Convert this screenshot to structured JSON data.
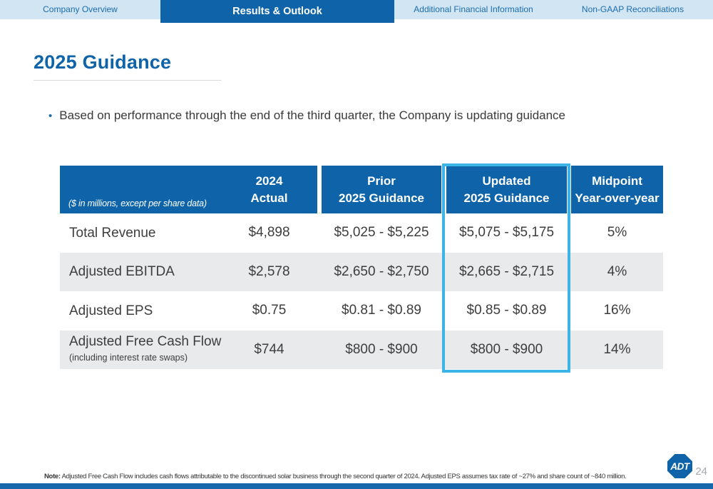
{
  "nav": {
    "tabs": [
      {
        "label": "Company Overview",
        "active": false
      },
      {
        "label": "Results & Outlook",
        "active": true
      },
      {
        "label": "Additional Financial Information",
        "active": false
      },
      {
        "label": "Non-GAAP Reconciliations",
        "active": false
      }
    ]
  },
  "slide": {
    "title": "2025 Guidance",
    "bullet_marker": "•",
    "bullet_text": "Based on performance through the end of the third quarter, the Company is updating guidance",
    "note_label": "Note:",
    "note_text": " Adjusted Free Cash Flow includes cash flows attributable to the discontinued solar business through the second quarter of 2024. Adjusted EPS assumes tax rate of ~27% and share count of ~840 million.",
    "logo_text": "ADT",
    "page_number": "24"
  },
  "table": {
    "caption": "($ in millions, except per share data)",
    "columns": [
      {
        "line1": "2024",
        "line2": "Actual"
      },
      {
        "line1": "Prior",
        "line2": "2025 Guidance"
      },
      {
        "line1": "Updated",
        "line2": "2025 Guidance",
        "highlighted": true
      },
      {
        "line1": "Midpoint",
        "line2": "Year-over-year"
      }
    ],
    "rows": [
      {
        "label": "Total Revenue",
        "actual_2024": "$4,898",
        "prior_2025": "$5,025 - $5,225",
        "updated_2025": "$5,075 - $5,175",
        "midpoint_yoy": "5%"
      },
      {
        "label": "Adjusted EBITDA",
        "actual_2024": "$2,578",
        "prior_2025": "$2,650 - $2,750",
        "updated_2025": "$2,665 - $2,715",
        "midpoint_yoy": "4%"
      },
      {
        "label": "Adjusted EPS",
        "actual_2024": "$0.75",
        "prior_2025": "$0.81 - $0.89",
        "updated_2025": "$0.85 - $0.89",
        "midpoint_yoy": "16%"
      },
      {
        "label": "Adjusted Free Cash Flow",
        "sublabel": "(including interest rate swaps)",
        "actual_2024": "$744",
        "prior_2025": "$800 - $900",
        "updated_2025": "$800 - $900",
        "midpoint_yoy": "14%"
      }
    ]
  },
  "colors": {
    "accent_blue": "#0f64a9",
    "highlight_cyan": "#3cb4e5",
    "nav_background": "#d2e5f2",
    "row_alt_gray": "#e8eaec",
    "bottom_bar_blue": "#1568ac"
  }
}
